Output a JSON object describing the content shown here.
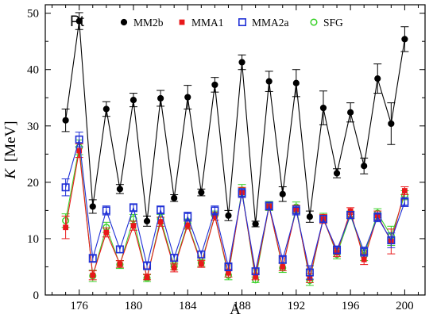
{
  "chart_data": {
    "type": "line",
    "annotation": "Pt",
    "xlabel": "A",
    "ylabel_symbol": "K",
    "ylabel_unit": "[MeV]",
    "xlim": [
      173.5,
      201.5
    ],
    "ylim": [
      0,
      51.5
    ],
    "xticks": [
      176,
      180,
      184,
      188,
      192,
      196,
      200
    ],
    "yticks": [
      0,
      10,
      20,
      30,
      40,
      50
    ],
    "grid": false,
    "legend_position": "top",
    "x": [
      175,
      176,
      177,
      178,
      179,
      180,
      181,
      182,
      183,
      184,
      185,
      186,
      187,
      188,
      189,
      190,
      191,
      192,
      193,
      194,
      195,
      196,
      197,
      198,
      199,
      200
    ],
    "series": [
      {
        "name": "MM2b",
        "color": "#000000",
        "marker": "filled-circle",
        "values": [
          31.0,
          48.6,
          15.7,
          33.0,
          18.8,
          34.6,
          13.1,
          34.9,
          17.2,
          35.1,
          18.2,
          37.3,
          14.1,
          41.3,
          12.6,
          37.9,
          17.9,
          37.6,
          13.9,
          33.2,
          21.6,
          32.4,
          22.9,
          38.4,
          30.4,
          45.4
        ],
        "errors": [
          2.0,
          1.5,
          1.2,
          1.3,
          0.8,
          1.2,
          0.9,
          1.4,
          0.6,
          2.1,
          0.6,
          1.3,
          0.9,
          1.3,
          0.5,
          1.8,
          1.3,
          2.4,
          1.0,
          3.0,
          0.8,
          1.7,
          1.4,
          2.6,
          3.7,
          2.2
        ]
      },
      {
        "name": "MMA1",
        "color": "#e8181a",
        "marker": "filled-square",
        "values": [
          12.0,
          25.6,
          3.5,
          11.1,
          5.5,
          12.3,
          3.2,
          13.0,
          4.8,
          12.4,
          5.5,
          14.0,
          3.9,
          18.2,
          3.3,
          15.7,
          5.0,
          15.2,
          3.0,
          13.5,
          7.5,
          14.9,
          6.3,
          14.1,
          9.5,
          18.5
        ],
        "errors": [
          2.0,
          1.2,
          0.8,
          0.8,
          0.6,
          0.8,
          0.5,
          0.8,
          0.7,
          0.7,
          0.6,
          0.7,
          0.7,
          0.9,
          0.6,
          0.6,
          0.7,
          0.7,
          0.8,
          0.8,
          0.7,
          0.6,
          0.9,
          0.8,
          2.2,
          0.7
        ]
      },
      {
        "name": "MMA2a",
        "color": "#1f2fd6",
        "marker": "open-square",
        "values": [
          19.1,
          27.6,
          6.5,
          15.0,
          8.1,
          15.5,
          5.2,
          15.1,
          6.6,
          13.9,
          7.2,
          15.0,
          5.0,
          18.1,
          4.2,
          15.8,
          6.3,
          15.0,
          4.0,
          13.5,
          8.0,
          14.2,
          7.7,
          13.8,
          9.7,
          16.5
        ],
        "errors": [
          1.5,
          1.3,
          0.7,
          0.8,
          0.6,
          0.7,
          0.7,
          0.7,
          0.6,
          0.8,
          0.6,
          0.8,
          0.7,
          0.8,
          0.6,
          0.7,
          0.7,
          0.8,
          1.2,
          0.6,
          0.7,
          0.6,
          0.8,
          0.8,
          1.3,
          0.8
        ]
      },
      {
        "name": "SFG",
        "color": "#3ad12a",
        "marker": "open-circle",
        "values": [
          13.2,
          26.2,
          3.4,
          12.0,
          5.4,
          13.5,
          3.0,
          13.5,
          5.1,
          12.7,
          5.7,
          14.1,
          3.5,
          18.6,
          2.7,
          15.8,
          4.8,
          15.6,
          2.6,
          13.7,
          7.2,
          14.2,
          7.0,
          14.5,
          10.5,
          17.7
        ],
        "errors": [
          1.2,
          1.3,
          1.0,
          0.9,
          0.7,
          0.8,
          0.6,
          0.8,
          0.6,
          0.8,
          0.6,
          0.8,
          0.8,
          1.0,
          0.5,
          0.8,
          0.8,
          0.9,
          0.9,
          0.8,
          0.8,
          0.7,
          0.9,
          0.8,
          1.7,
          0.8
        ]
      }
    ]
  }
}
